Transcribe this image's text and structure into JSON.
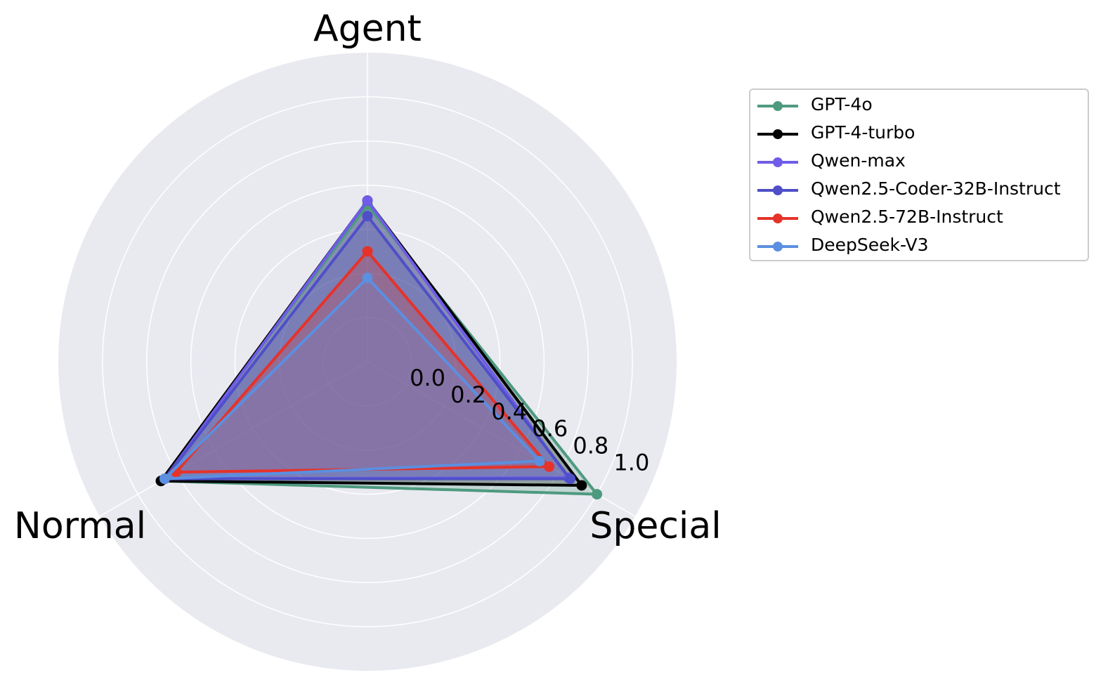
{
  "chart_data": {
    "type": "radar",
    "axes": [
      "Agent",
      "Special",
      "Normal"
    ],
    "rticks": [
      "0.0",
      "0.2",
      "0.4",
      "0.6",
      "0.8",
      "1.0"
    ],
    "rlim": [
      -0.2,
      1.2
    ],
    "grid": true,
    "background": "#e9e9f0",
    "legend_position": "right",
    "series": [
      {
        "name": "GPT-4o",
        "color": "#4e9a7f",
        "values": [
          0.51,
          1.0,
          0.88
        ]
      },
      {
        "name": "GPT-4-turbo",
        "color": "#000000",
        "values": [
          0.53,
          0.92,
          0.88
        ]
      },
      {
        "name": "Qwen-max",
        "color": "#6f5ce8",
        "values": [
          0.53,
          0.85,
          0.86
        ]
      },
      {
        "name": "Qwen2.5-Coder-32B-Instruct",
        "color": "#4f4fc8",
        "values": [
          0.46,
          0.86,
          0.86
        ]
      },
      {
        "name": "Qwen2.5-72B-Instruct",
        "color": "#e5332a",
        "values": [
          0.3,
          0.75,
          0.8
        ]
      },
      {
        "name": "DeepSeek-V3",
        "color": "#5b8fe0",
        "values": [
          0.18,
          0.7,
          0.86
        ]
      }
    ]
  }
}
